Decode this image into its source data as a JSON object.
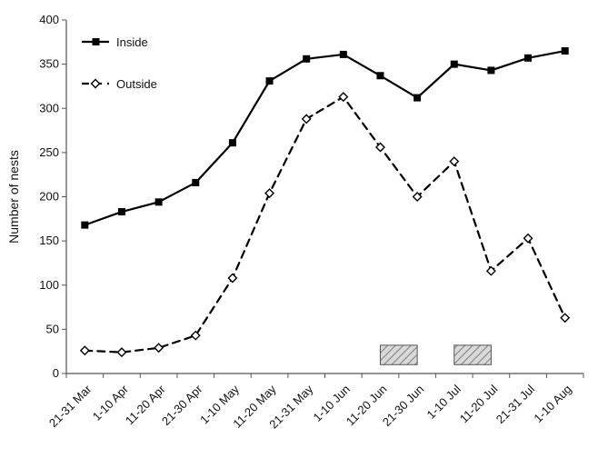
{
  "chart_data": {
    "type": "line",
    "categories": [
      "21-31 Mar",
      "1-10 Apr",
      "11-20 Apr",
      "21-30 Apr",
      "1-10 May",
      "11-20 May",
      "21-31 May",
      "1-10 Jun",
      "11-20 Jun",
      "21-30 Jun",
      "1-10 Jul",
      "11-20 Jul",
      "21-31 Jul",
      "1-10 Aug"
    ],
    "ylabel": "Number of nests",
    "ylim": [
      0,
      400
    ],
    "yticks": [
      0,
      50,
      100,
      150,
      200,
      250,
      300,
      350,
      400
    ],
    "grid": false,
    "legend_placement": "top-left",
    "series": [
      {
        "name": "Inside",
        "line_style": "solid",
        "marker": "filled-square",
        "color": "#000000",
        "values": [
          168,
          183,
          194,
          216,
          261,
          331,
          356,
          361,
          337,
          312,
          350,
          343,
          357,
          365
        ]
      },
      {
        "name": "Outside",
        "line_style": "dashed",
        "marker": "open-diamond",
        "color": "#000000",
        "values": [
          26,
          24,
          29,
          43,
          108,
          204,
          288,
          313,
          256,
          200,
          240,
          116,
          153,
          63
        ]
      }
    ],
    "annotations": [
      {
        "type": "hatched-box",
        "category_index": 8.5,
        "y_range": [
          10,
          32
        ]
      },
      {
        "type": "hatched-box",
        "category_index": 10.5,
        "y_range": [
          10,
          32
        ]
      }
    ]
  }
}
